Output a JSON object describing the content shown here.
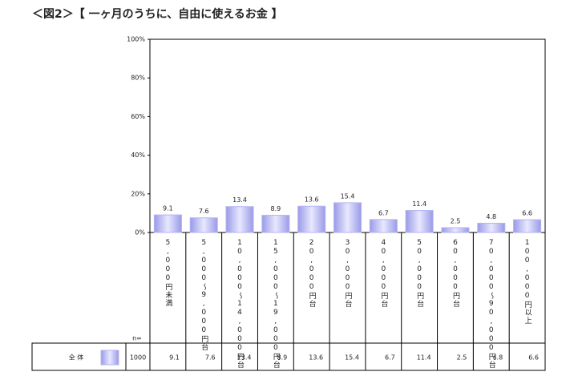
{
  "chart_data": {
    "type": "bar",
    "title": "＜図2＞【 一ヶ月のうちに、自由に使えるお金 】",
    "categories": [
      "5,000円未満",
      "5,000～9,000円台",
      "10,000～14,000円台",
      "15,000～19,000円台",
      "20,000円台",
      "30,000円台",
      "40,000円台",
      "50,000円台",
      "60,000円台",
      "70,000～90,000円台",
      "100,000円以上"
    ],
    "series": [
      {
        "name": "全 体",
        "color": "#b4b4f4",
        "values": [
          9.1,
          7.6,
          13.4,
          8.9,
          13.6,
          15.4,
          6.7,
          11.4,
          2.5,
          4.8,
          6.6
        ]
      }
    ],
    "ylim": [
      0,
      100
    ],
    "yticks": [
      {
        "value": 0,
        "label": "0%"
      },
      {
        "value": 20,
        "label": "20%"
      },
      {
        "value": 40,
        "label": "40%"
      },
      {
        "value": 60,
        "label": "60%"
      },
      {
        "value": 80,
        "label": "80%"
      },
      {
        "value": 100,
        "label": "100%"
      }
    ],
    "n_label": "n=",
    "n": 1000
  }
}
